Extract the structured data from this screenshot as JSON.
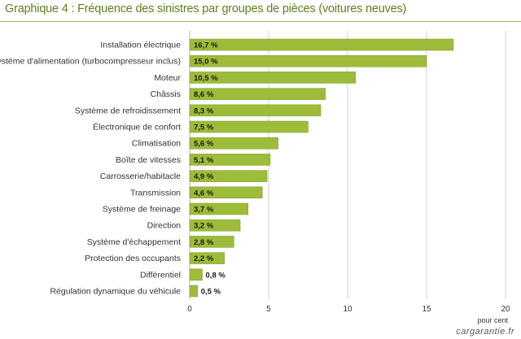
{
  "title": "Graphique 4 : Fréquence des sinistres par groupes de pièces (voitures neuves)",
  "watermark": "cargarantie.fr",
  "colors": {
    "bar": "#9dbc3a",
    "bar_stroke": "#7e9c2a",
    "title": "#5f7f1e",
    "grid": "#d0d0d0"
  },
  "chart_data": {
    "type": "bar",
    "orientation": "horizontal",
    "title": "Graphique 4 : Fréquence des sinistres par groupes de pièces (voitures neuves)",
    "xlabel": "pour cent",
    "ylabel": "",
    "xlim": [
      0,
      20
    ],
    "xticks": [
      0,
      5,
      10,
      15,
      20
    ],
    "grid": true,
    "categories": [
      "Installation électrique",
      "Système d'alimentation (turbocompresseur inclus)",
      "Moteur",
      "Châssis",
      "Système de refroidissement",
      "Électronique de confort",
      "Climatisation",
      "Boîte de vitesses",
      "Carrosserie/habitacle",
      "Transmission",
      "Système de freinage",
      "Direction",
      "Système d'échappement",
      "Protection des occupants",
      "Différentiel",
      "Régulation dynamique du véhicule"
    ],
    "values": [
      16.7,
      15.0,
      10.5,
      8.6,
      8.3,
      7.5,
      5.6,
      5.1,
      4.9,
      4.6,
      3.7,
      3.2,
      2.8,
      2.2,
      0.8,
      0.5
    ],
    "value_labels": [
      "16,7 %",
      "15,0 %",
      "10,5 %",
      "8,6 %",
      "8,3 %",
      "7,5 %",
      "5,6 %",
      "5,1 %",
      "4,9 %",
      "4,6 %",
      "3,7 %",
      "3,2 %",
      "2,8 %",
      "2,2 %",
      "0,8 %",
      "0,5 %"
    ]
  }
}
